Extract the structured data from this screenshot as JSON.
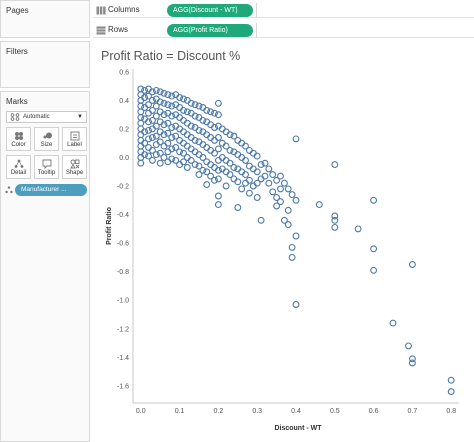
{
  "panels": {
    "pages": "Pages",
    "filters": "Filters",
    "marks": "Marks"
  },
  "marks_card": {
    "type_value": "Automatic",
    "buttons": [
      {
        "label": "Color",
        "icon": "color-icon"
      },
      {
        "label": "Size",
        "icon": "size-icon"
      },
      {
        "label": "Label",
        "icon": "label-icon"
      },
      {
        "label": "Detail",
        "icon": "detail-icon"
      },
      {
        "label": "Tooltip",
        "icon": "tooltip-icon"
      },
      {
        "label": "Shape",
        "icon": "shape-icon"
      }
    ],
    "detail_pill": "Manufacturer ..."
  },
  "shelves": {
    "columns": {
      "label": "Columns",
      "pill": "AGG(Discount - WT)"
    },
    "rows": {
      "label": "Rows",
      "pill": "AGG(Profit Ratio)"
    }
  },
  "colors": {
    "mark": "#4e79a7",
    "measure_pill": "#1fa97b",
    "dimension_pill": "#4c9dbe"
  },
  "chart_data": {
    "type": "scatter",
    "title": "Profit Ratio = Discount %",
    "xlabel": "Discount - WT",
    "ylabel": "Profit Ratio",
    "xlim": [
      -0.02,
      0.82
    ],
    "ylim": [
      -1.72,
      0.62
    ],
    "x_ticks": [
      "0.0",
      "0.1",
      "0.2",
      "0.3",
      "0.4",
      "0.5",
      "0.6",
      "0.7",
      "0.8"
    ],
    "y_ticks": [
      "0.6",
      "0.4",
      "0.2",
      "0.0",
      "-0.2",
      "-0.4",
      "-0.6",
      "-0.8",
      "-1.0",
      "-1.2",
      "-1.4",
      "-1.6"
    ],
    "grid": false,
    "points": [
      [
        0.0,
        0.48
      ],
      [
        0.0,
        0.44
      ],
      [
        0.0,
        0.4
      ],
      [
        0.0,
        0.36
      ],
      [
        0.0,
        0.32
      ],
      [
        0.0,
        0.28
      ],
      [
        0.0,
        0.24
      ],
      [
        0.0,
        0.2
      ],
      [
        0.0,
        0.16
      ],
      [
        0.0,
        0.12
      ],
      [
        0.0,
        0.08
      ],
      [
        0.0,
        0.04
      ],
      [
        0.0,
        0.0
      ],
      [
        0.0,
        -0.04
      ],
      [
        0.01,
        0.47
      ],
      [
        0.01,
        0.42
      ],
      [
        0.01,
        0.35
      ],
      [
        0.01,
        0.27
      ],
      [
        0.01,
        0.18
      ],
      [
        0.01,
        0.1
      ],
      [
        0.01,
        0.02
      ],
      [
        0.02,
        0.48
      ],
      [
        0.02,
        0.43
      ],
      [
        0.02,
        0.37
      ],
      [
        0.02,
        0.31
      ],
      [
        0.02,
        0.25
      ],
      [
        0.02,
        0.19
      ],
      [
        0.02,
        0.13
      ],
      [
        0.02,
        0.07
      ],
      [
        0.02,
        0.01
      ],
      [
        0.03,
        0.46
      ],
      [
        0.03,
        0.4
      ],
      [
        0.03,
        0.33
      ],
      [
        0.03,
        0.26
      ],
      [
        0.03,
        0.2
      ],
      [
        0.03,
        0.14
      ],
      [
        0.03,
        0.05
      ],
      [
        0.03,
        -0.02
      ],
      [
        0.04,
        0.47
      ],
      [
        0.04,
        0.41
      ],
      [
        0.04,
        0.36
      ],
      [
        0.04,
        0.29
      ],
      [
        0.04,
        0.22
      ],
      [
        0.04,
        0.15
      ],
      [
        0.04,
        0.09
      ],
      [
        0.04,
        0.02
      ],
      [
        0.05,
        0.46
      ],
      [
        0.05,
        0.39
      ],
      [
        0.05,
        0.32
      ],
      [
        0.05,
        0.25
      ],
      [
        0.05,
        0.18
      ],
      [
        0.05,
        0.11
      ],
      [
        0.05,
        0.03
      ],
      [
        0.05,
        -0.04
      ],
      [
        0.06,
        0.45
      ],
      [
        0.06,
        0.38
      ],
      [
        0.06,
        0.3
      ],
      [
        0.06,
        0.23
      ],
      [
        0.06,
        0.16
      ],
      [
        0.06,
        0.08
      ],
      [
        0.06,
        0.0
      ],
      [
        0.07,
        0.44
      ],
      [
        0.07,
        0.37
      ],
      [
        0.07,
        0.31
      ],
      [
        0.07,
        0.24
      ],
      [
        0.07,
        0.17
      ],
      [
        0.07,
        0.1
      ],
      [
        0.07,
        0.04
      ],
      [
        0.07,
        -0.03
      ],
      [
        0.08,
        0.43
      ],
      [
        0.08,
        0.36
      ],
      [
        0.08,
        0.29
      ],
      [
        0.08,
        0.21
      ],
      [
        0.08,
        0.14
      ],
      [
        0.08,
        0.06
      ],
      [
        0.08,
        -0.01
      ],
      [
        0.09,
        0.44
      ],
      [
        0.09,
        0.37
      ],
      [
        0.09,
        0.3
      ],
      [
        0.09,
        0.22
      ],
      [
        0.09,
        0.15
      ],
      [
        0.09,
        0.07
      ],
      [
        0.09,
        -0.02
      ],
      [
        0.1,
        0.42
      ],
      [
        0.1,
        0.35
      ],
      [
        0.1,
        0.28
      ],
      [
        0.1,
        0.2
      ],
      [
        0.1,
        0.12
      ],
      [
        0.1,
        0.04
      ],
      [
        0.1,
        -0.05
      ],
      [
        0.11,
        0.41
      ],
      [
        0.11,
        0.33
      ],
      [
        0.11,
        0.26
      ],
      [
        0.11,
        0.18
      ],
      [
        0.11,
        0.1
      ],
      [
        0.11,
        0.03
      ],
      [
        0.11,
        -0.03
      ],
      [
        0.12,
        0.4
      ],
      [
        0.12,
        0.32
      ],
      [
        0.12,
        0.24
      ],
      [
        0.12,
        0.16
      ],
      [
        0.12,
        0.08
      ],
      [
        0.12,
        0.0
      ],
      [
        0.12,
        -0.07
      ],
      [
        0.13,
        0.38
      ],
      [
        0.13,
        0.31
      ],
      [
        0.13,
        0.22
      ],
      [
        0.13,
        0.14
      ],
      [
        0.13,
        0.06
      ],
      [
        0.13,
        -0.02
      ],
      [
        0.14,
        0.37
      ],
      [
        0.14,
        0.29
      ],
      [
        0.14,
        0.21
      ],
      [
        0.14,
        0.12
      ],
      [
        0.14,
        0.04
      ],
      [
        0.14,
        -0.05
      ],
      [
        0.15,
        0.36
      ],
      [
        0.15,
        0.28
      ],
      [
        0.15,
        0.19
      ],
      [
        0.15,
        0.11
      ],
      [
        0.15,
        0.02
      ],
      [
        0.15,
        -0.06
      ],
      [
        0.15,
        -0.12
      ],
      [
        0.16,
        0.35
      ],
      [
        0.16,
        0.26
      ],
      [
        0.16,
        0.18
      ],
      [
        0.16,
        0.09
      ],
      [
        0.16,
        0.0
      ],
      [
        0.16,
        -0.09
      ],
      [
        0.17,
        0.33
      ],
      [
        0.17,
        0.25
      ],
      [
        0.17,
        0.16
      ],
      [
        0.17,
        0.07
      ],
      [
        0.17,
        -0.03
      ],
      [
        0.17,
        -0.1
      ],
      [
        0.17,
        -0.19
      ],
      [
        0.18,
        0.32
      ],
      [
        0.18,
        0.23
      ],
      [
        0.18,
        0.14
      ],
      [
        0.18,
        0.05
      ],
      [
        0.18,
        -0.05
      ],
      [
        0.18,
        -0.13
      ],
      [
        0.19,
        0.31
      ],
      [
        0.19,
        0.21
      ],
      [
        0.19,
        0.12
      ],
      [
        0.19,
        0.03
      ],
      [
        0.19,
        -0.07
      ],
      [
        0.19,
        -0.16
      ],
      [
        0.2,
        0.38
      ],
      [
        0.2,
        0.3
      ],
      [
        0.2,
        0.22
      ],
      [
        0.2,
        0.14
      ],
      [
        0.2,
        0.06
      ],
      [
        0.2,
        -0.02
      ],
      [
        0.2,
        -0.09
      ],
      [
        0.2,
        -0.15
      ],
      [
        0.2,
        -0.27
      ],
      [
        0.2,
        -0.33
      ],
      [
        0.21,
        0.2
      ],
      [
        0.21,
        0.1
      ],
      [
        0.21,
        0.0
      ],
      [
        0.21,
        -0.08
      ],
      [
        0.22,
        0.18
      ],
      [
        0.22,
        0.08
      ],
      [
        0.22,
        -0.02
      ],
      [
        0.22,
        -0.1
      ],
      [
        0.22,
        -0.2
      ],
      [
        0.23,
        0.16
      ],
      [
        0.23,
        0.05
      ],
      [
        0.23,
        -0.04
      ],
      [
        0.23,
        -0.12
      ],
      [
        0.24,
        0.15
      ],
      [
        0.24,
        0.04
      ],
      [
        0.24,
        -0.07
      ],
      [
        0.24,
        -0.15
      ],
      [
        0.25,
        0.12
      ],
      [
        0.25,
        0.02
      ],
      [
        0.25,
        -0.08
      ],
      [
        0.25,
        -0.17
      ],
      [
        0.25,
        -0.35
      ],
      [
        0.26,
        0.1
      ],
      [
        0.26,
        0.0
      ],
      [
        0.26,
        -0.1
      ],
      [
        0.26,
        -0.22
      ],
      [
        0.27,
        0.08
      ],
      [
        0.27,
        -0.02
      ],
      [
        0.27,
        -0.12
      ],
      [
        0.27,
        -0.18
      ],
      [
        0.28,
        0.05
      ],
      [
        0.28,
        -0.06
      ],
      [
        0.28,
        -0.16
      ],
      [
        0.28,
        -0.25
      ],
      [
        0.29,
        0.03
      ],
      [
        0.29,
        -0.08
      ],
      [
        0.29,
        -0.2
      ],
      [
        0.3,
        0.01
      ],
      [
        0.3,
        -0.1
      ],
      [
        0.3,
        -0.18
      ],
      [
        0.3,
        -0.28
      ],
      [
        0.31,
        -0.05
      ],
      [
        0.31,
        -0.15
      ],
      [
        0.31,
        -0.44
      ],
      [
        0.32,
        -0.04
      ],
      [
        0.32,
        -0.13
      ],
      [
        0.33,
        -0.08
      ],
      [
        0.33,
        -0.18
      ],
      [
        0.34,
        -0.12
      ],
      [
        0.34,
        -0.24
      ],
      [
        0.35,
        -0.16
      ],
      [
        0.35,
        -0.28
      ],
      [
        0.35,
        -0.34
      ],
      [
        0.36,
        -0.13
      ],
      [
        0.36,
        -0.22
      ],
      [
        0.36,
        -0.31
      ],
      [
        0.37,
        -0.18
      ],
      [
        0.37,
        -0.44
      ],
      [
        0.38,
        -0.22
      ],
      [
        0.38,
        -0.37
      ],
      [
        0.38,
        -0.47
      ],
      [
        0.39,
        -0.26
      ],
      [
        0.39,
        -0.63
      ],
      [
        0.39,
        -0.7
      ],
      [
        0.4,
        0.13
      ],
      [
        0.4,
        -0.3
      ],
      [
        0.4,
        -0.55
      ],
      [
        0.4,
        -1.03
      ],
      [
        0.46,
        -0.33
      ],
      [
        0.5,
        -0.05
      ],
      [
        0.5,
        -0.41
      ],
      [
        0.5,
        -0.44
      ],
      [
        0.5,
        -0.49
      ],
      [
        0.56,
        -0.5
      ],
      [
        0.6,
        -0.3
      ],
      [
        0.6,
        -0.64
      ],
      [
        0.6,
        -0.79
      ],
      [
        0.65,
        -1.16
      ],
      [
        0.69,
        -1.32
      ],
      [
        0.7,
        -0.75
      ],
      [
        0.7,
        -1.41
      ],
      [
        0.7,
        -1.44
      ],
      [
        0.8,
        -1.56
      ],
      [
        0.8,
        -1.64
      ]
    ]
  }
}
